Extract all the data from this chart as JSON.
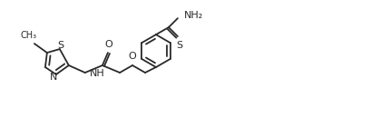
{
  "background_color": "#ffffff",
  "line_color": "#2a2a2a",
  "text_color": "#2a2a2a",
  "line_width": 1.3,
  "font_size": 7.5,
  "figsize": [
    4.19,
    1.52
  ],
  "dpi": 100,
  "xlim": [
    0,
    105
  ],
  "ylim": [
    0,
    38
  ]
}
